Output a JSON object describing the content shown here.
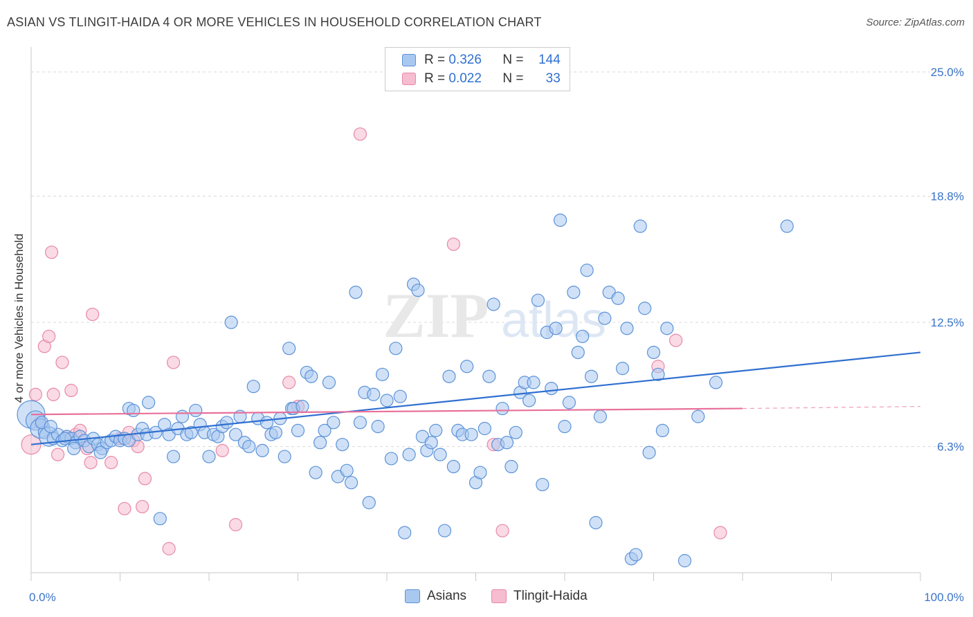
{
  "title": "ASIAN VS TLINGIT-HAIDA 4 OR MORE VEHICLES IN HOUSEHOLD CORRELATION CHART",
  "source": "Source: ZipAtlas.com",
  "watermark": {
    "zip": "ZIP",
    "atlas": "atlas"
  },
  "legend": {
    "rows": [
      {
        "r_label": "R =",
        "r_value": "0.326",
        "n_label": "N =",
        "n_value": "144"
      },
      {
        "r_label": "R =",
        "r_value": "0.022",
        "n_label": "N =",
        "n_value": "33"
      }
    ]
  },
  "bottom_legend": {
    "series1": "Asians",
    "series2": "Tlingit-Haida"
  },
  "colors": {
    "blue_fill": "#a9c8f0",
    "blue_stroke": "#5b92d8",
    "blue_line": "#2f6fd0",
    "pink_fill": "#f6bccf",
    "pink_stroke": "#e888a6",
    "pink_line": "#e8709a",
    "axis_text": "#3a74c9",
    "grid": "#d8d8d8"
  },
  "chart_data": {
    "type": "scatter",
    "title": "ASIAN VS TLINGIT-HAIDA 4 OR MORE VEHICLES IN HOUSEHOLD CORRELATION CHART",
    "xlabel": "",
    "ylabel": "4 or more Vehicles in Household",
    "xlim": [
      0,
      100
    ],
    "ylim": [
      0,
      25.9
    ],
    "x_tick_labels": [
      "0.0%",
      "100.0%"
    ],
    "y_ticks": [
      6.3,
      12.5,
      18.8,
      25.0
    ],
    "y_tick_labels": [
      "6.3%",
      "12.5%",
      "18.8%",
      "25.0%"
    ],
    "grid": true,
    "legend_position": "top-center",
    "series": [
      {
        "name": "Asians",
        "r": 0.326,
        "n": 144,
        "trend": {
          "x": [
            0,
            100
          ],
          "y": [
            6.4,
            11.0
          ]
        },
        "points": [
          {
            "x": 0.0,
            "y": 7.9,
            "s": 3
          },
          {
            "x": 0.5,
            "y": 7.6,
            "s": 2
          },
          {
            "x": 1.0,
            "y": 7.2,
            "s": 2
          },
          {
            "x": 1.5,
            "y": 7.0,
            "s": 1
          },
          {
            "x": 2.0,
            "y": 6.8,
            "s": 2
          },
          {
            "x": 2.5,
            "y": 6.7,
            "s": 1
          },
          {
            "x": 3.0,
            "y": 6.9,
            "s": 1
          },
          {
            "x": 3.5,
            "y": 6.6,
            "s": 1
          },
          {
            "x": 4.0,
            "y": 6.8,
            "s": 1
          },
          {
            "x": 4.5,
            "y": 6.7,
            "s": 1
          },
          {
            "x": 5.0,
            "y": 6.5,
            "s": 1
          },
          {
            "x": 5.5,
            "y": 6.8,
            "s": 1
          },
          {
            "x": 6.0,
            "y": 6.6,
            "s": 1
          },
          {
            "x": 6.5,
            "y": 6.3,
            "s": 1
          },
          {
            "x": 7.0,
            "y": 6.7,
            "s": 1
          },
          {
            "x": 7.5,
            "y": 6.4,
            "s": 1
          },
          {
            "x": 8.0,
            "y": 6.2,
            "s": 1
          },
          {
            "x": 8.5,
            "y": 6.5,
            "s": 1
          },
          {
            "x": 9.0,
            "y": 6.6,
            "s": 1
          },
          {
            "x": 9.5,
            "y": 6.8,
            "s": 1
          },
          {
            "x": 10.0,
            "y": 6.6,
            "s": 1
          },
          {
            "x": 10.5,
            "y": 6.7,
            "s": 1
          },
          {
            "x": 11.0,
            "y": 6.6,
            "s": 1
          },
          {
            "x": 4.8,
            "y": 6.2,
            "s": 1
          },
          {
            "x": 7.8,
            "y": 6.0,
            "s": 1
          },
          {
            "x": 11.0,
            "y": 8.2,
            "s": 1
          },
          {
            "x": 11.5,
            "y": 8.1,
            "s": 1
          },
          {
            "x": 12.0,
            "y": 6.9,
            "s": 1
          },
          {
            "x": 12.5,
            "y": 7.2,
            "s": 1
          },
          {
            "x": 13.0,
            "y": 6.9,
            "s": 1
          },
          {
            "x": 13.2,
            "y": 8.5,
            "s": 1
          },
          {
            "x": 14.0,
            "y": 7.0,
            "s": 1
          },
          {
            "x": 14.5,
            "y": 2.7,
            "s": 1
          },
          {
            "x": 15.0,
            "y": 7.4,
            "s": 1
          },
          {
            "x": 15.5,
            "y": 6.9,
            "s": 1
          },
          {
            "x": 16.0,
            "y": 5.8,
            "s": 1
          },
          {
            "x": 16.5,
            "y": 7.2,
            "s": 1
          },
          {
            "x": 17.0,
            "y": 7.8,
            "s": 1
          },
          {
            "x": 17.5,
            "y": 6.9,
            "s": 1
          },
          {
            "x": 18.0,
            "y": 7.0,
            "s": 1
          },
          {
            "x": 18.5,
            "y": 8.1,
            "s": 1
          },
          {
            "x": 19.0,
            "y": 7.4,
            "s": 1
          },
          {
            "x": 19.5,
            "y": 7.0,
            "s": 1
          },
          {
            "x": 20.0,
            "y": 5.8,
            "s": 1
          },
          {
            "x": 20.5,
            "y": 6.9,
            "s": 1
          },
          {
            "x": 21.0,
            "y": 6.8,
            "s": 1
          },
          {
            "x": 21.5,
            "y": 7.3,
            "s": 1
          },
          {
            "x": 22.0,
            "y": 7.5,
            "s": 1
          },
          {
            "x": 22.5,
            "y": 12.5,
            "s": 1
          },
          {
            "x": 23.0,
            "y": 6.9,
            "s": 1
          },
          {
            "x": 23.5,
            "y": 7.8,
            "s": 1
          },
          {
            "x": 24.0,
            "y": 6.5,
            "s": 1
          },
          {
            "x": 24.5,
            "y": 6.3,
            "s": 1
          },
          {
            "x": 25.0,
            "y": 9.3,
            "s": 1
          },
          {
            "x": 25.5,
            "y": 7.7,
            "s": 1
          },
          {
            "x": 26.0,
            "y": 6.1,
            "s": 1
          },
          {
            "x": 26.5,
            "y": 7.5,
            "s": 1
          },
          {
            "x": 27.0,
            "y": 6.9,
            "s": 1
          },
          {
            "x": 27.5,
            "y": 7.0,
            "s": 1
          },
          {
            "x": 28.0,
            "y": 7.7,
            "s": 1
          },
          {
            "x": 28.5,
            "y": 5.8,
            "s": 1
          },
          {
            "x": 29.0,
            "y": 11.2,
            "s": 1
          },
          {
            "x": 29.3,
            "y": 8.2,
            "s": 1
          },
          {
            "x": 29.5,
            "y": 8.2,
            "s": 1
          },
          {
            "x": 30.0,
            "y": 7.1,
            "s": 1
          },
          {
            "x": 30.5,
            "y": 8.3,
            "s": 1
          },
          {
            "x": 31.0,
            "y": 10.0,
            "s": 1
          },
          {
            "x": 31.5,
            "y": 9.8,
            "s": 1
          },
          {
            "x": 32.0,
            "y": 5.0,
            "s": 1
          },
          {
            "x": 32.5,
            "y": 6.5,
            "s": 1
          },
          {
            "x": 33.0,
            "y": 7.1,
            "s": 1
          },
          {
            "x": 33.5,
            "y": 9.5,
            "s": 1
          },
          {
            "x": 34.0,
            "y": 7.5,
            "s": 1
          },
          {
            "x": 34.5,
            "y": 4.8,
            "s": 1
          },
          {
            "x": 35.0,
            "y": 6.4,
            "s": 1
          },
          {
            "x": 35.5,
            "y": 5.1,
            "s": 1
          },
          {
            "x": 36.0,
            "y": 4.5,
            "s": 1
          },
          {
            "x": 36.5,
            "y": 14.0,
            "s": 1
          },
          {
            "x": 37.0,
            "y": 7.5,
            "s": 1
          },
          {
            "x": 37.5,
            "y": 9.0,
            "s": 1
          },
          {
            "x": 38.0,
            "y": 3.5,
            "s": 1
          },
          {
            "x": 38.5,
            "y": 8.9,
            "s": 1
          },
          {
            "x": 39.0,
            "y": 7.3,
            "s": 1
          },
          {
            "x": 39.5,
            "y": 9.9,
            "s": 1
          },
          {
            "x": 40.0,
            "y": 8.6,
            "s": 1
          },
          {
            "x": 40.5,
            "y": 5.7,
            "s": 1
          },
          {
            "x": 41.0,
            "y": 11.2,
            "s": 1
          },
          {
            "x": 41.5,
            "y": 8.8,
            "s": 1
          },
          {
            "x": 42.0,
            "y": 2.0,
            "s": 1
          },
          {
            "x": 42.5,
            "y": 5.9,
            "s": 1
          },
          {
            "x": 43.0,
            "y": 14.4,
            "s": 1
          },
          {
            "x": 43.5,
            "y": 14.1,
            "s": 1
          },
          {
            "x": 44.0,
            "y": 6.8,
            "s": 1
          },
          {
            "x": 44.5,
            "y": 6.1,
            "s": 1
          },
          {
            "x": 45.0,
            "y": 6.5,
            "s": 1
          },
          {
            "x": 45.5,
            "y": 7.1,
            "s": 1
          },
          {
            "x": 46.0,
            "y": 5.9,
            "s": 1
          },
          {
            "x": 46.5,
            "y": 2.1,
            "s": 1
          },
          {
            "x": 47.0,
            "y": 9.8,
            "s": 1
          },
          {
            "x": 47.5,
            "y": 5.3,
            "s": 1
          },
          {
            "x": 48.0,
            "y": 7.1,
            "s": 1
          },
          {
            "x": 48.5,
            "y": 6.9,
            "s": 1
          },
          {
            "x": 49.0,
            "y": 10.3,
            "s": 1
          },
          {
            "x": 49.5,
            "y": 6.9,
            "s": 1
          },
          {
            "x": 50.0,
            "y": 4.5,
            "s": 1
          },
          {
            "x": 50.5,
            "y": 5.0,
            "s": 1
          },
          {
            "x": 51.0,
            "y": 7.2,
            "s": 1
          },
          {
            "x": 51.5,
            "y": 9.8,
            "s": 1
          },
          {
            "x": 52.0,
            "y": 13.4,
            "s": 1
          },
          {
            "x": 52.5,
            "y": 6.4,
            "s": 1
          },
          {
            "x": 53.0,
            "y": 8.2,
            "s": 1
          },
          {
            "x": 53.5,
            "y": 6.5,
            "s": 1
          },
          {
            "x": 54.0,
            "y": 5.3,
            "s": 1
          },
          {
            "x": 54.5,
            "y": 7.0,
            "s": 1
          },
          {
            "x": 55.0,
            "y": 9.0,
            "s": 1
          },
          {
            "x": 55.5,
            "y": 9.5,
            "s": 1
          },
          {
            "x": 56.0,
            "y": 8.6,
            "s": 1
          },
          {
            "x": 56.5,
            "y": 9.5,
            "s": 1
          },
          {
            "x": 57.0,
            "y": 13.6,
            "s": 1
          },
          {
            "x": 57.5,
            "y": 4.4,
            "s": 1
          },
          {
            "x": 58.0,
            "y": 12.0,
            "s": 1
          },
          {
            "x": 58.5,
            "y": 9.2,
            "s": 1
          },
          {
            "x": 59.0,
            "y": 12.2,
            "s": 1
          },
          {
            "x": 59.5,
            "y": 17.6,
            "s": 1
          },
          {
            "x": 60.0,
            "y": 7.3,
            "s": 1
          },
          {
            "x": 60.5,
            "y": 8.5,
            "s": 1
          },
          {
            "x": 61.0,
            "y": 14.0,
            "s": 1
          },
          {
            "x": 61.5,
            "y": 11.0,
            "s": 1
          },
          {
            "x": 62.0,
            "y": 11.8,
            "s": 1
          },
          {
            "x": 62.5,
            "y": 15.1,
            "s": 1
          },
          {
            "x": 63.0,
            "y": 9.8,
            "s": 1
          },
          {
            "x": 63.5,
            "y": 2.5,
            "s": 1
          },
          {
            "x": 64.0,
            "y": 7.8,
            "s": 1
          },
          {
            "x": 64.5,
            "y": 12.7,
            "s": 1
          },
          {
            "x": 65.0,
            "y": 14.0,
            "s": 1
          },
          {
            "x": 66.0,
            "y": 13.7,
            "s": 1
          },
          {
            "x": 66.5,
            "y": 10.2,
            "s": 1
          },
          {
            "x": 67.0,
            "y": 12.2,
            "s": 1
          },
          {
            "x": 67.5,
            "y": 0.7,
            "s": 1
          },
          {
            "x": 68.0,
            "y": 0.9,
            "s": 1
          },
          {
            "x": 68.5,
            "y": 17.3,
            "s": 1
          },
          {
            "x": 69.0,
            "y": 13.2,
            "s": 1
          },
          {
            "x": 69.5,
            "y": 6.0,
            "s": 1
          },
          {
            "x": 70.0,
            "y": 11.0,
            "s": 1
          },
          {
            "x": 70.5,
            "y": 9.9,
            "s": 1
          },
          {
            "x": 71.0,
            "y": 7.1,
            "s": 1
          },
          {
            "x": 71.5,
            "y": 12.2,
            "s": 1
          },
          {
            "x": 73.5,
            "y": 0.6,
            "s": 1
          },
          {
            "x": 75.0,
            "y": 7.8,
            "s": 1
          },
          {
            "x": 77.0,
            "y": 9.5,
            "s": 1
          },
          {
            "x": 85.0,
            "y": 17.3,
            "s": 1
          },
          {
            "x": 1.2,
            "y": 7.5,
            "s": 1
          },
          {
            "x": 2.2,
            "y": 7.3,
            "s": 1
          },
          {
            "x": 3.8,
            "y": 6.7,
            "s": 1
          }
        ]
      },
      {
        "name": "Tlingit-Haida",
        "r": 0.022,
        "n": 33,
        "trend": {
          "x": [
            0,
            80
          ],
          "y": [
            7.9,
            8.2
          ]
        },
        "trend_dashed": {
          "x": [
            80,
            100
          ],
          "y": [
            8.2,
            8.3
          ]
        },
        "points": [
          {
            "x": 0.0,
            "y": 6.4,
            "s": 2
          },
          {
            "x": 0.5,
            "y": 8.9,
            "s": 1
          },
          {
            "x": 1.0,
            "y": 7.5,
            "s": 1
          },
          {
            "x": 1.5,
            "y": 11.3,
            "s": 1
          },
          {
            "x": 2.0,
            "y": 11.8,
            "s": 1
          },
          {
            "x": 2.3,
            "y": 16.0,
            "s": 1
          },
          {
            "x": 2.5,
            "y": 8.9,
            "s": 1
          },
          {
            "x": 3.0,
            "y": 5.9,
            "s": 1
          },
          {
            "x": 3.5,
            "y": 10.5,
            "s": 1
          },
          {
            "x": 4.0,
            "y": 6.8,
            "s": 1
          },
          {
            "x": 4.5,
            "y": 9.1,
            "s": 1
          },
          {
            "x": 5.0,
            "y": 6.9,
            "s": 1
          },
          {
            "x": 5.5,
            "y": 7.1,
            "s": 1
          },
          {
            "x": 6.3,
            "y": 6.2,
            "s": 1
          },
          {
            "x": 6.7,
            "y": 5.5,
            "s": 1
          },
          {
            "x": 6.9,
            "y": 12.9,
            "s": 1
          },
          {
            "x": 9.0,
            "y": 5.5,
            "s": 1
          },
          {
            "x": 10.0,
            "y": 6.7,
            "s": 1
          },
          {
            "x": 10.5,
            "y": 3.2,
            "s": 1
          },
          {
            "x": 11.0,
            "y": 7.0,
            "s": 1
          },
          {
            "x": 11.5,
            "y": 6.6,
            "s": 1
          },
          {
            "x": 12.0,
            "y": 6.3,
            "s": 1
          },
          {
            "x": 12.5,
            "y": 3.3,
            "s": 1
          },
          {
            "x": 12.8,
            "y": 4.7,
            "s": 1
          },
          {
            "x": 15.5,
            "y": 1.2,
            "s": 1
          },
          {
            "x": 16.0,
            "y": 10.5,
            "s": 1
          },
          {
            "x": 21.5,
            "y": 6.1,
            "s": 1
          },
          {
            "x": 23.0,
            "y": 2.4,
            "s": 1
          },
          {
            "x": 29.0,
            "y": 9.5,
            "s": 1
          },
          {
            "x": 30.0,
            "y": 8.3,
            "s": 1
          },
          {
            "x": 37.0,
            "y": 21.9,
            "s": 1
          },
          {
            "x": 47.5,
            "y": 16.4,
            "s": 1
          },
          {
            "x": 52.0,
            "y": 6.4,
            "s": 1
          },
          {
            "x": 53.0,
            "y": 2.1,
            "s": 1
          },
          {
            "x": 70.5,
            "y": 10.3,
            "s": 1
          },
          {
            "x": 72.5,
            "y": 11.6,
            "s": 1
          },
          {
            "x": 77.5,
            "y": 2.0,
            "s": 1
          }
        ]
      }
    ]
  }
}
